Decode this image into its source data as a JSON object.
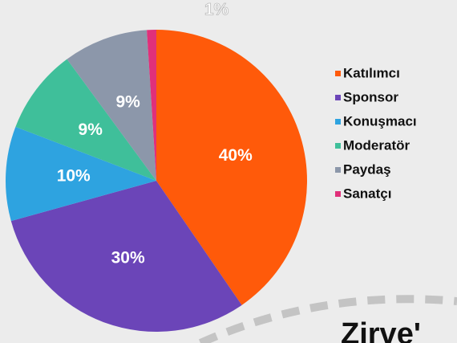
{
  "chart_data": {
    "type": "pie",
    "categories": [
      "Katılımcı",
      "Sponsor",
      "Konuşmacı",
      "Moderatör",
      "Paydaş",
      "Sanatçı"
    ],
    "values": [
      40,
      30,
      10,
      9,
      9,
      1
    ],
    "value_labels": [
      "40%",
      "30%",
      "10%",
      "9%",
      "9%",
      "1%"
    ],
    "colors": [
      "#ff5a0a",
      "#6b45b8",
      "#2ea3e0",
      "#3fbf9a",
      "#8c97aa",
      "#e0307a"
    ],
    "legend": "right",
    "annotation": "Zirve'"
  }
}
